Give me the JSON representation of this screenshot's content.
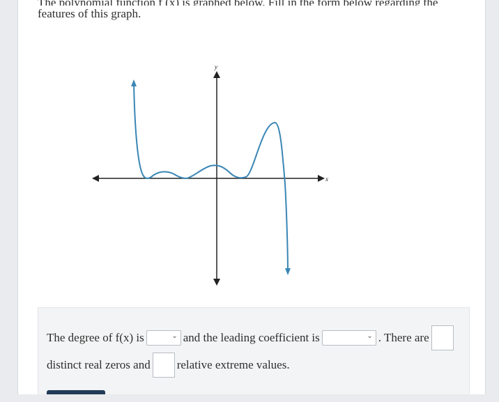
{
  "question": {
    "line_cut": "The polynomial function f (x) is graphed below. Fill in the form below regarding the",
    "line2": "features of this graph."
  },
  "graph": {
    "x_label": "x",
    "y_label": "y",
    "curve_color": "#3a86b5",
    "axis_color": "#222222"
  },
  "form": {
    "t1": "The degree of f(x) is",
    "t2": "and the leading coefficient is",
    "t3": ". There are",
    "t4": "distinct real zeros and",
    "t5": "relative extreme values.",
    "degree_select": {
      "value": ""
    },
    "leading_coef_select": {
      "value": ""
    },
    "zeros_input": {
      "value": ""
    },
    "extrema_input": {
      "value": ""
    }
  }
}
